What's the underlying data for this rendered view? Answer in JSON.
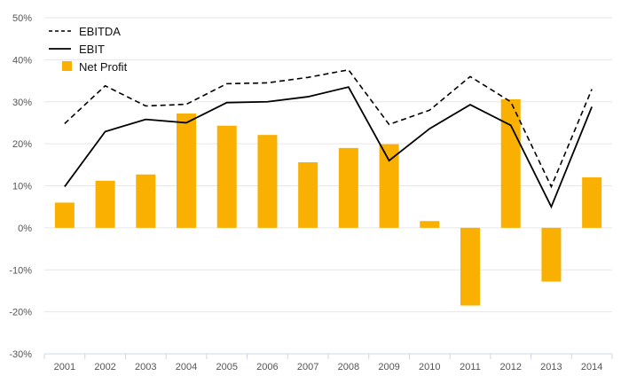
{
  "chart_data": {
    "type": "bar",
    "categories": [
      "2001",
      "2002",
      "2003",
      "2004",
      "2005",
      "2006",
      "2007",
      "2008",
      "2009",
      "2010",
      "2011",
      "2012",
      "2013",
      "2014"
    ],
    "ylim": [
      -30,
      50
    ],
    "yticks": [
      -30,
      -20,
      -10,
      0,
      10,
      20,
      30,
      40,
      50
    ],
    "ytick_labels": [
      "-30%",
      "-20%",
      "-10%",
      "0%",
      "10%",
      "20%",
      "30%",
      "40%",
      "50%"
    ],
    "grid": true,
    "legend_position": "top-left",
    "series": [
      {
        "name": "EBITDA",
        "type": "line",
        "style": "dashed",
        "color": "#000000",
        "values": [
          24.8,
          33.8,
          29.0,
          29.4,
          34.3,
          34.5,
          35.8,
          37.6,
          24.6,
          28.0,
          36.0,
          30.0,
          9.8,
          33.0
        ]
      },
      {
        "name": "EBIT",
        "type": "line",
        "style": "solid",
        "color": "#000000",
        "values": [
          9.8,
          22.9,
          25.8,
          25.0,
          29.8,
          30.0,
          31.2,
          33.5,
          16.0,
          23.6,
          29.3,
          24.4,
          5.0,
          28.8
        ]
      },
      {
        "name": "Net Profit",
        "type": "bar",
        "color": "#F9B000",
        "values": [
          6.0,
          11.2,
          12.7,
          27.2,
          24.3,
          22.1,
          15.6,
          19.0,
          19.9,
          1.6,
          -18.5,
          30.6,
          -12.8,
          12.0
        ]
      }
    ]
  }
}
